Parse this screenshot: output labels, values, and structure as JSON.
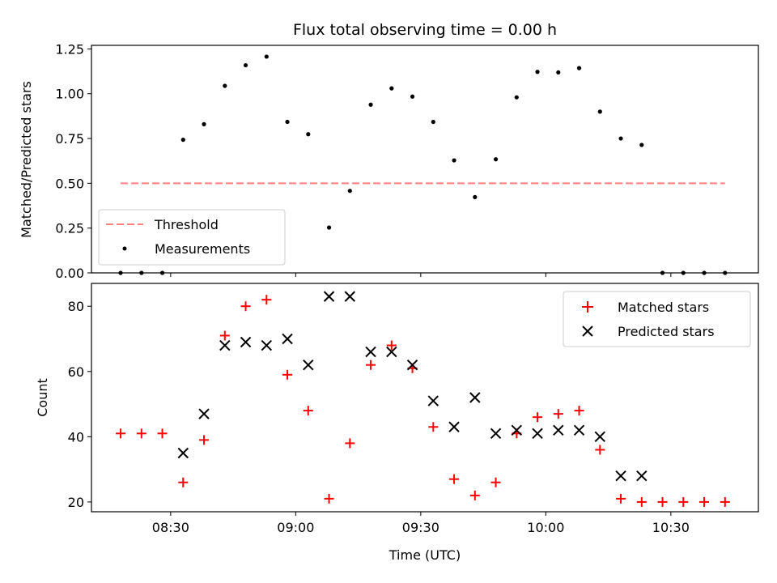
{
  "title": "Flux total observing time = 0.00 h",
  "chart_data": [
    {
      "type": "scatter",
      "title": "Flux total observing time = 0.00 h",
      "ylabel": "Matched/Predicted stars",
      "xlabel": "",
      "ylim": [
        0,
        1.27
      ],
      "yticks": [
        0,
        0.25,
        0.5,
        0.75,
        1.0,
        1.25
      ],
      "ytick_labels": [
        "0.00",
        "0.25",
        "0.50",
        "0.75",
        "1.00",
        "1.25"
      ],
      "xlim": [
        "08:11",
        "10:51"
      ],
      "grid": false,
      "legend_placement": "lower-left",
      "series": [
        {
          "name": "Threshold",
          "style": "dashed-line",
          "color": "#ff7f7f",
          "x": [
            "08:18",
            "10:43"
          ],
          "y": [
            0.5,
            0.5
          ]
        },
        {
          "name": "Measurements",
          "style": "dot",
          "color": "#000000",
          "x": [
            "08:18",
            "08:23",
            "08:28",
            "08:33",
            "08:38",
            "08:43",
            "08:48",
            "08:53",
            "08:58",
            "09:03",
            "09:08",
            "09:13",
            "09:18",
            "09:23",
            "09:28",
            "09:33",
            "09:38",
            "09:43",
            "09:48",
            "09:53",
            "09:58",
            "10:03",
            "10:08",
            "10:13",
            "10:18",
            "10:23",
            "10:28",
            "10:33",
            "10:38",
            "10:43"
          ],
          "y": [
            0.0,
            0.0,
            0.0,
            0.743,
            0.83,
            1.044,
            1.159,
            1.207,
            0.843,
            0.774,
            0.253,
            0.458,
            0.939,
            1.03,
            0.984,
            0.843,
            0.628,
            0.423,
            0.634,
            0.98,
            1.122,
            1.119,
            1.143,
            0.9,
            0.75,
            0.714,
            0.0,
            0.0,
            0.0,
            0.0
          ]
        }
      ]
    },
    {
      "type": "scatter",
      "title": "",
      "ylabel": "Count",
      "xlabel": "Time (UTC)",
      "ylim": [
        17,
        87
      ],
      "yticks": [
        20,
        40,
        60,
        80
      ],
      "ytick_labels": [
        "20",
        "40",
        "60",
        "80"
      ],
      "xlim": [
        "08:11",
        "10:51"
      ],
      "xticks": [
        "08:30",
        "09:00",
        "09:30",
        "10:00",
        "10:30"
      ],
      "grid": false,
      "legend_placement": "top-right",
      "series": [
        {
          "name": "Matched stars",
          "style": "plus",
          "color": "#ff0000",
          "x": [
            "08:18",
            "08:23",
            "08:28",
            "08:33",
            "08:38",
            "08:43",
            "08:48",
            "08:53",
            "08:58",
            "09:03",
            "09:08",
            "09:13",
            "09:18",
            "09:23",
            "09:28",
            "09:33",
            "09:38",
            "09:43",
            "09:48",
            "09:53",
            "09:58",
            "10:03",
            "10:08",
            "10:13",
            "10:18",
            "10:23",
            "10:28",
            "10:33",
            "10:38",
            "10:43"
          ],
          "y": [
            41,
            41,
            41,
            26,
            39,
            71,
            80,
            82,
            59,
            48,
            21,
            38,
            62,
            68,
            61,
            43,
            27,
            22,
            26,
            41,
            46,
            47,
            48,
            36,
            21,
            20,
            20,
            20,
            20,
            20
          ]
        },
        {
          "name": "Predicted stars",
          "style": "x",
          "color": "#000000",
          "x": [
            "08:33",
            "08:38",
            "08:43",
            "08:48",
            "08:53",
            "08:58",
            "09:03",
            "09:08",
            "09:13",
            "09:18",
            "09:23",
            "09:28",
            "09:33",
            "09:38",
            "09:43",
            "09:48",
            "09:53",
            "09:58",
            "10:03",
            "10:08",
            "10:13",
            "10:18",
            "10:23"
          ],
          "y": [
            35,
            47,
            68,
            69,
            68,
            70,
            62,
            83,
            83,
            66,
            66,
            62,
            51,
            43,
            52,
            41,
            42,
            41,
            42,
            42,
            40,
            28,
            28
          ]
        }
      ]
    }
  ]
}
